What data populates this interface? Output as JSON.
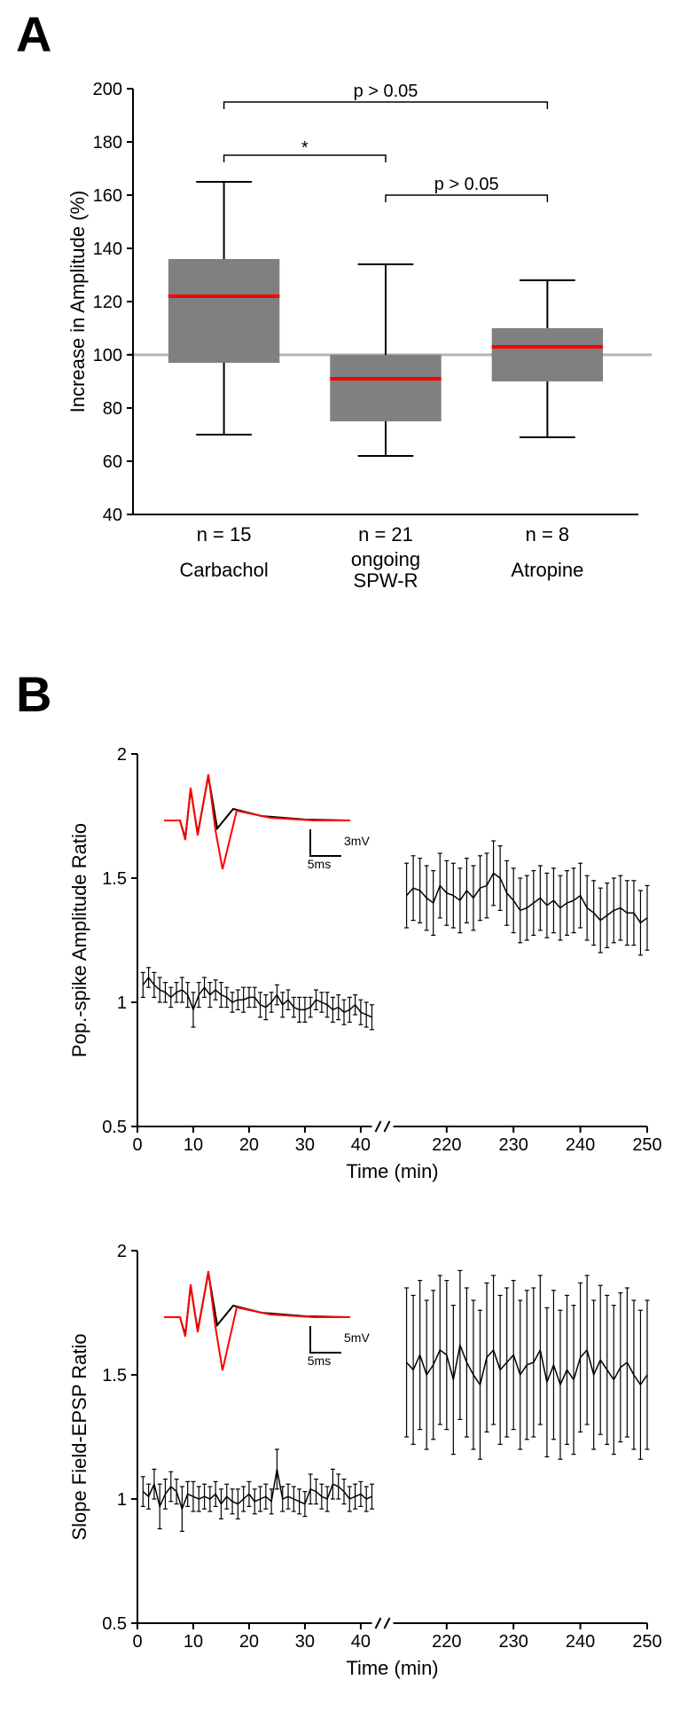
{
  "panelA": {
    "label": "A",
    "type": "boxplot",
    "ylabel": "Increase in Amplitude (%)",
    "ylim": [
      40,
      200
    ],
    "ytick_step": 20,
    "yticks": [
      40,
      60,
      80,
      100,
      120,
      140,
      160,
      180,
      200
    ],
    "refline_y": 100,
    "refline_color": "#b3b3b3",
    "box_fill": "#808080",
    "median_color": "#ff0000",
    "label_fontsize": 22,
    "tick_fontsize": 20,
    "categories": [
      {
        "name": "Carbachol",
        "n_label": "n = 15",
        "q1": 97,
        "median": 122,
        "q3": 136,
        "whisker_lo": 70,
        "whisker_hi": 165
      },
      {
        "name": "ongoing SPW-R",
        "n_label": "n = 21",
        "q1": 75,
        "median": 91,
        "q3": 100,
        "whisker_lo": 62,
        "whisker_hi": 134
      },
      {
        "name": "Atropine",
        "n_label": "n = 8",
        "q1": 90,
        "median": 103,
        "q3": 110,
        "whisker_lo": 69,
        "whisker_hi": 128
      }
    ],
    "comparisons": [
      {
        "from": 0,
        "to": 2,
        "label": "p > 0.05",
        "y": 195
      },
      {
        "from": 0,
        "to": 1,
        "label": "*",
        "y": 175,
        "is_star": true
      },
      {
        "from": 1,
        "to": 2,
        "label": "p > 0.05",
        "y": 160
      }
    ]
  },
  "panelB": {
    "label": "B",
    "plots": [
      {
        "type": "line_errorbar",
        "ylabel": "Pop.-spike Amplitude Ratio",
        "xlabel": "Time (min)",
        "ylim": [
          0.5,
          2.0
        ],
        "yticks": [
          0.5,
          1,
          1.5,
          2
        ],
        "xlim_left": [
          0,
          42
        ],
        "xlim_right": [
          212,
          250
        ],
        "xticks_left": [
          0,
          10,
          20,
          30,
          40
        ],
        "xticks_right": [
          220,
          230,
          240,
          250
        ],
        "axis_break": true,
        "inset": {
          "trace_black_color": "#000000",
          "trace_red_color": "#ff0000",
          "scale_x_label": "5ms",
          "scale_y_label": "3mV"
        },
        "series_left": {
          "x": [
            1,
            2,
            3,
            4,
            5,
            6,
            7,
            8,
            9,
            10,
            11,
            12,
            13,
            14,
            15,
            16,
            17,
            18,
            19,
            20,
            21,
            22,
            23,
            24,
            25,
            26,
            27,
            28,
            29,
            30,
            31,
            32,
            33,
            34,
            35,
            36,
            37,
            38,
            39,
            40,
            41,
            42
          ],
          "y": [
            1.07,
            1.1,
            1.07,
            1.05,
            1.04,
            1.02,
            1.04,
            1.05,
            1.03,
            0.97,
            1.03,
            1.06,
            1.03,
            1.05,
            1.03,
            1.02,
            1.0,
            1.01,
            1.01,
            1.02,
            1.02,
            0.99,
            0.98,
            1.0,
            1.03,
            0.99,
            1.01,
            0.98,
            0.97,
            0.97,
            0.98,
            1.01,
            1.0,
            0.99,
            0.97,
            0.98,
            0.96,
            0.97,
            0.99,
            0.96,
            0.95,
            0.94
          ],
          "err": [
            0.05,
            0.04,
            0.05,
            0.05,
            0.04,
            0.04,
            0.04,
            0.05,
            0.05,
            0.07,
            0.05,
            0.04,
            0.05,
            0.04,
            0.05,
            0.04,
            0.04,
            0.04,
            0.05,
            0.04,
            0.04,
            0.05,
            0.05,
            0.04,
            0.04,
            0.05,
            0.04,
            0.04,
            0.05,
            0.05,
            0.04,
            0.04,
            0.04,
            0.05,
            0.05,
            0.05,
            0.05,
            0.05,
            0.04,
            0.05,
            0.05,
            0.05
          ]
        },
        "series_right": {
          "x": [
            214,
            216,
            218,
            220,
            222,
            224,
            226,
            228,
            230,
            232,
            234,
            236,
            238,
            240,
            242,
            244,
            246,
            248,
            250
          ],
          "x_dense": [
            214,
            215,
            216,
            217,
            218,
            219,
            220,
            221,
            222,
            223,
            224,
            225,
            226,
            227,
            228,
            229,
            230,
            231,
            232,
            233,
            234,
            235,
            236,
            237,
            238,
            239,
            240,
            241,
            242,
            243,
            244,
            245,
            246,
            247,
            248,
            249,
            250
          ],
          "y": [
            1.43,
            1.45,
            1.4,
            1.44,
            1.41,
            1.42,
            1.47,
            1.5,
            1.41,
            1.38,
            1.42,
            1.41,
            1.4,
            1.43,
            1.36,
            1.35,
            1.38,
            1.36,
            1.34
          ],
          "y_dense": [
            1.43,
            1.46,
            1.45,
            1.42,
            1.4,
            1.47,
            1.44,
            1.43,
            1.41,
            1.45,
            1.42,
            1.46,
            1.47,
            1.52,
            1.5,
            1.44,
            1.41,
            1.37,
            1.38,
            1.4,
            1.42,
            1.39,
            1.41,
            1.38,
            1.4,
            1.41,
            1.43,
            1.38,
            1.36,
            1.33,
            1.35,
            1.37,
            1.38,
            1.36,
            1.36,
            1.32,
            1.34
          ],
          "err": 0.13
        }
      },
      {
        "type": "line_errorbar",
        "ylabel": "Slope Field-EPSP Ratio",
        "xlabel": "Time (min)",
        "ylim": [
          0.5,
          2.0
        ],
        "yticks": [
          0.5,
          1,
          1.5,
          2
        ],
        "xlim_left": [
          0,
          42
        ],
        "xlim_right": [
          212,
          250
        ],
        "xticks_left": [
          0,
          10,
          20,
          30,
          40
        ],
        "xticks_right": [
          220,
          230,
          240,
          250
        ],
        "axis_break": true,
        "inset": {
          "trace_black_color": "#000000",
          "trace_red_color": "#ff0000",
          "scale_x_label": "5ms",
          "scale_y_label": "5mV"
        },
        "series_left": {
          "x": [
            1,
            2,
            3,
            4,
            5,
            6,
            7,
            8,
            9,
            10,
            11,
            12,
            13,
            14,
            15,
            16,
            17,
            18,
            19,
            20,
            21,
            22,
            23,
            24,
            25,
            26,
            27,
            28,
            29,
            30,
            31,
            32,
            33,
            34,
            35,
            36,
            37,
            38,
            39,
            40,
            41,
            42
          ],
          "y": [
            1.03,
            1.01,
            1.06,
            0.97,
            1.02,
            1.05,
            1.03,
            0.96,
            1.02,
            1.01,
            1.0,
            1.01,
            1.0,
            1.02,
            0.98,
            1.01,
            0.99,
            0.98,
            1.0,
            1.02,
            0.99,
            1.0,
            1.01,
            0.99,
            1.12,
            1.0,
            1.01,
            1.0,
            0.99,
            0.98,
            1.04,
            1.03,
            1.01,
            1.0,
            1.06,
            1.05,
            1.03,
            1.0,
            1.01,
            1.02,
            1.0,
            1.01
          ],
          "err": [
            0.06,
            0.05,
            0.06,
            0.09,
            0.06,
            0.06,
            0.05,
            0.09,
            0.05,
            0.06,
            0.05,
            0.05,
            0.05,
            0.05,
            0.06,
            0.05,
            0.05,
            0.06,
            0.05,
            0.05,
            0.05,
            0.05,
            0.05,
            0.05,
            0.08,
            0.05,
            0.05,
            0.05,
            0.05,
            0.05,
            0.06,
            0.05,
            0.05,
            0.05,
            0.06,
            0.05,
            0.05,
            0.05,
            0.05,
            0.05,
            0.05,
            0.05
          ]
        },
        "series_right": {
          "x_dense": [
            214,
            215,
            216,
            217,
            218,
            219,
            220,
            221,
            222,
            223,
            224,
            225,
            226,
            227,
            228,
            229,
            230,
            231,
            232,
            233,
            234,
            235,
            236,
            237,
            238,
            239,
            240,
            241,
            242,
            243,
            244,
            245,
            246,
            247,
            248,
            249,
            250
          ],
          "y_dense": [
            1.55,
            1.52,
            1.58,
            1.5,
            1.54,
            1.6,
            1.58,
            1.48,
            1.62,
            1.55,
            1.5,
            1.46,
            1.57,
            1.6,
            1.52,
            1.55,
            1.58,
            1.5,
            1.54,
            1.55,
            1.6,
            1.47,
            1.54,
            1.46,
            1.52,
            1.48,
            1.57,
            1.6,
            1.5,
            1.56,
            1.52,
            1.48,
            1.53,
            1.55,
            1.5,
            1.46,
            1.5
          ],
          "err": 0.3
        }
      }
    ]
  },
  "colors": {
    "background": "#ffffff",
    "axis": "#000000",
    "median": "#ff0000",
    "box": "#808080",
    "refline": "#b3b3b3",
    "trace_red": "#ff0000",
    "trace_black": "#000000"
  }
}
